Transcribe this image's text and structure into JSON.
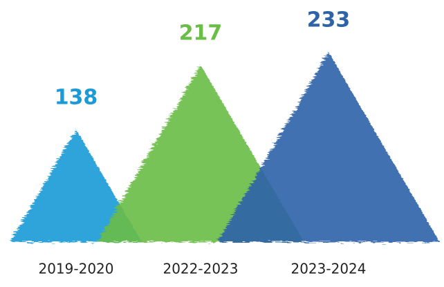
{
  "chart_data": {
    "type": "triangle",
    "categories": [
      "2019-2020",
      "2022-2023",
      "2023-2024"
    ],
    "values": [
      138,
      217,
      233
    ],
    "colors": [
      "#1b9ad7",
      "#6abd45",
      "#2f63a8"
    ]
  }
}
